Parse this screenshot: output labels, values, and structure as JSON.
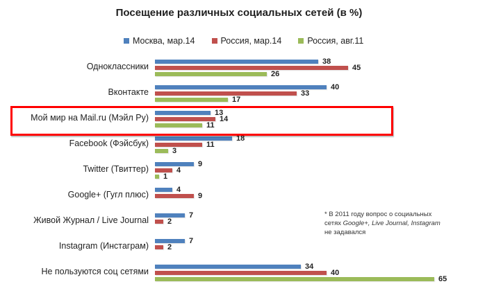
{
  "chart_data": {
    "type": "bar",
    "orientation": "horizontal",
    "title": "Посещение различных социальных сетей (в %)",
    "xlabel": "",
    "ylabel": "",
    "legend_position": "top",
    "grid": false,
    "categories": [
      "Одноклассники",
      "Вконтакте",
      "Мой мир на Mail.ru (Мэйл Ру)",
      "Facebook (Фэйсбук)",
      "Twitter (Твиттер)",
      "Google+ (Гугл плюс)",
      "Живой Журнал / Live Journal",
      "Instagram (Инстаграм)",
      "Не пользуются соц сетями"
    ],
    "series": [
      {
        "name": "Москва, мар.14",
        "color": "#4F81BD",
        "values": [
          38,
          40,
          13,
          18,
          9,
          4,
          7,
          7,
          34
        ]
      },
      {
        "name": "Россия, мар.14",
        "color": "#C0504D",
        "values": [
          45,
          33,
          14,
          11,
          4,
          9,
          2,
          2,
          40
        ]
      },
      {
        "name": "Россия, авг.11",
        "color": "#9BBB59",
        "values": [
          26,
          17,
          11,
          3,
          1,
          null,
          null,
          null,
          65
        ]
      }
    ],
    "highlighted_category": "Мой мир на Mail.ru (Мэйл Ру)",
    "highlight_color": "#FF0000",
    "annotation": "* В 2011 году вопрос о социальных сетях Google+, Live Journal, Instagram не задавался"
  },
  "note": {
    "line1": "* В 2011 году вопрос о социальных",
    "line2_prefix": "сетях ",
    "line2_italic": "Google+, Live Journal, Instagram",
    "line3": "не задавался"
  }
}
